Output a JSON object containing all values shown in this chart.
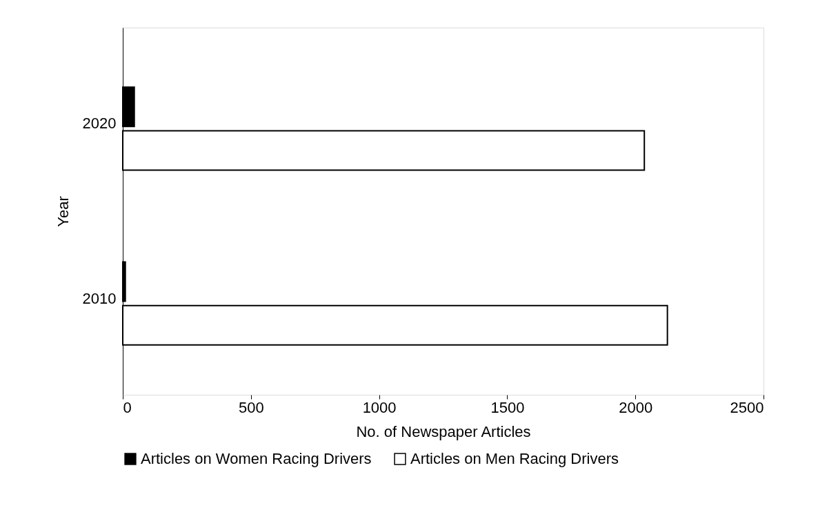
{
  "chart_data": {
    "type": "bar",
    "orientation": "horizontal",
    "xlabel": "No. of Newspaper Articles",
    "ylabel": "Year",
    "categories": [
      "2020",
      "2010"
    ],
    "series": [
      {
        "name": "Articles on Women Racing Drivers",
        "color": "#000000",
        "values": [
          45,
          10
        ]
      },
      {
        "name": "Articles on Men Racing Drivers",
        "color": "#ffffff",
        "values": [
          2035,
          2125
        ]
      }
    ],
    "xlim": [
      0,
      2500
    ],
    "xticks": [
      0,
      500,
      1000,
      1500,
      2000,
      2500
    ],
    "grid": false,
    "legend": "bottom"
  }
}
